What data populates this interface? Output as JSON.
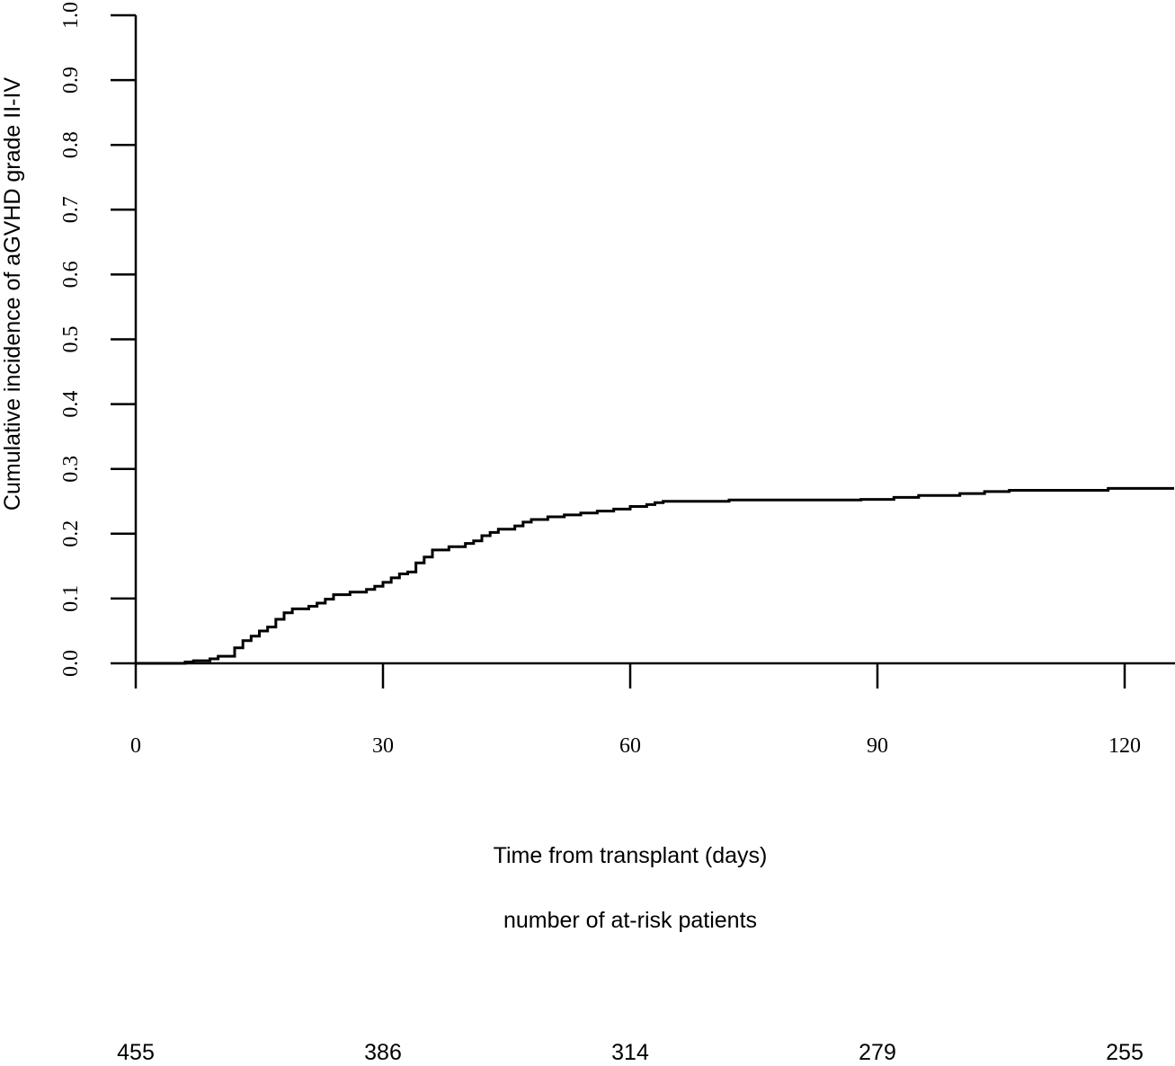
{
  "chart_data": {
    "type": "line",
    "subtype": "step",
    "title": "",
    "xlabel": "Time from transplant (days)",
    "ylabel": "Cumulative incidence of aGVHD grade II-IV",
    "xlim": [
      0,
      126
    ],
    "ylim": [
      0,
      1.0
    ],
    "x_ticks": [
      0,
      30,
      60,
      90,
      120
    ],
    "y_ticks": [
      "0.0",
      "0.1",
      "0.2",
      "0.3",
      "0.4",
      "0.5",
      "0.6",
      "0.7",
      "0.8",
      "0.9",
      "1.0"
    ],
    "grid": false,
    "legend": "none",
    "line_color": "#000000",
    "series": [
      {
        "x": [
          0,
          6,
          7,
          9,
          10,
          12,
          13,
          14,
          15,
          16,
          17,
          18,
          19,
          21,
          22,
          23,
          24,
          26,
          28,
          29,
          30,
          31,
          32,
          33,
          34,
          35,
          36,
          38,
          40,
          41,
          42,
          43,
          44,
          46,
          47,
          48,
          50,
          52,
          54,
          56,
          58,
          60,
          62,
          63,
          64,
          72,
          88,
          92,
          95,
          100,
          103,
          106,
          118,
          126
        ],
        "y": [
          0.0,
          0.002,
          0.004,
          0.007,
          0.011,
          0.024,
          0.035,
          0.042,
          0.05,
          0.056,
          0.068,
          0.078,
          0.084,
          0.088,
          0.093,
          0.099,
          0.106,
          0.11,
          0.114,
          0.119,
          0.125,
          0.132,
          0.138,
          0.141,
          0.155,
          0.164,
          0.175,
          0.18,
          0.185,
          0.189,
          0.197,
          0.202,
          0.207,
          0.212,
          0.218,
          0.222,
          0.226,
          0.229,
          0.232,
          0.235,
          0.238,
          0.242,
          0.245,
          0.248,
          0.25,
          0.252,
          0.253,
          0.256,
          0.259,
          0.262,
          0.265,
          0.267,
          0.27,
          0.27
        ]
      }
    ]
  },
  "risk_table": {
    "title": "number of at-risk patients",
    "times": [
      0,
      30,
      60,
      90,
      120
    ],
    "counts": [
      "455",
      "386",
      "314",
      "279",
      "255"
    ]
  }
}
